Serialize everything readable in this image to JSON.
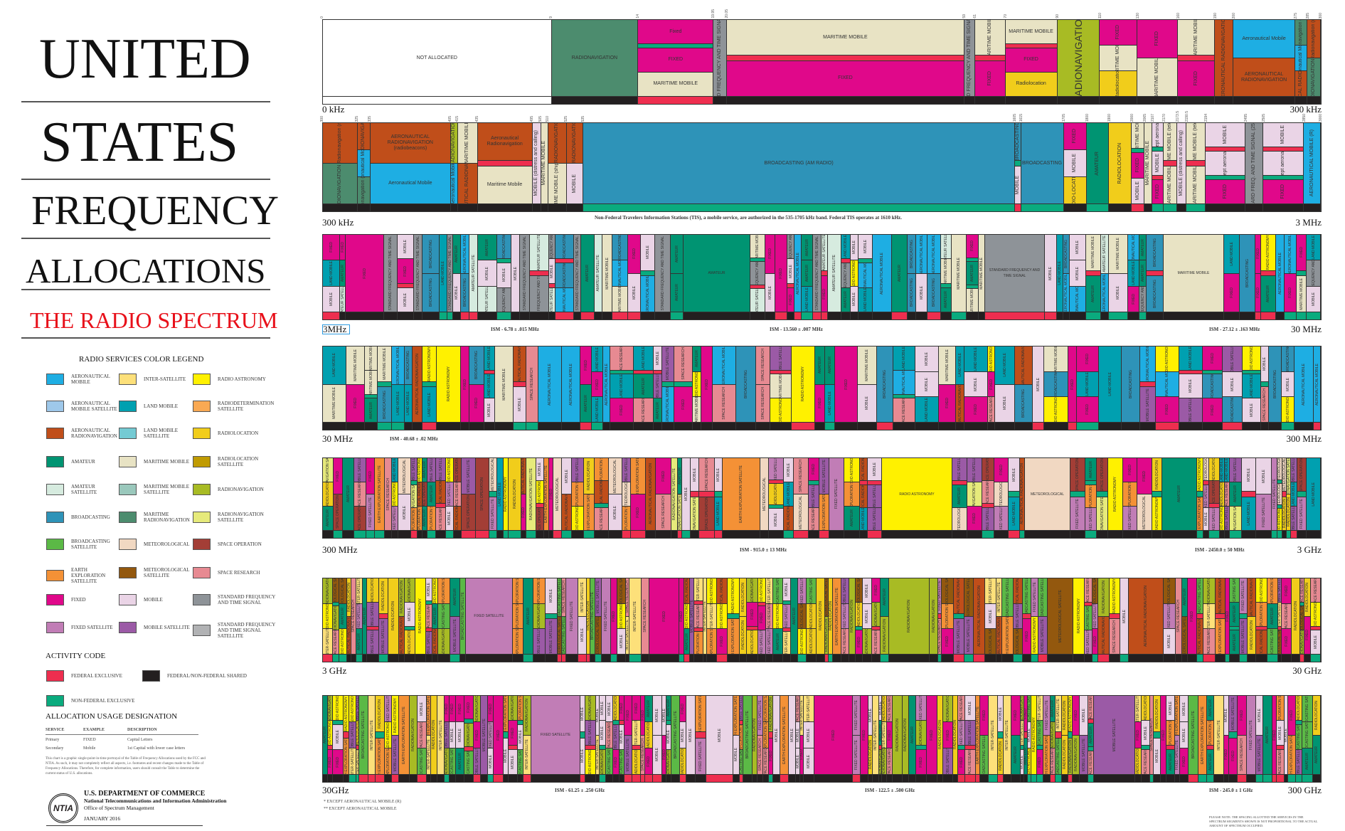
{
  "title": {
    "line1": "UNITED",
    "line2": "STATES",
    "line3": "FREQUENCY",
    "line4": "ALLOCATIONS",
    "subtitle": "THE RADIO SPECTRUM"
  },
  "legend": {
    "heading": "RADIO SERVICES COLOR LEGEND",
    "items": [
      {
        "key": "aero_mobile",
        "label": "Aeronautical Mobile",
        "color": "#1eaee3"
      },
      {
        "key": "aero_mobile_sat",
        "label": "Aeronautical Mobile Satellite",
        "color": "#9ec8ea"
      },
      {
        "key": "aero_radionav",
        "label": "Aeronautical Radionavigation",
        "color": "#c04e1a"
      },
      {
        "key": "amateur",
        "label": "Amateur",
        "color": "#009472"
      },
      {
        "key": "amateur_sat",
        "label": "Amateur Satellite",
        "color": "#d6ebdf"
      },
      {
        "key": "broadcasting",
        "label": "Broadcasting",
        "color": "#2e93b8"
      },
      {
        "key": "broadcasting_sat",
        "label": "Broadcasting Satellite",
        "color": "#5bb946"
      },
      {
        "key": "earth_expl_sat",
        "label": "Earth Exploration Satellite",
        "color": "#f49136"
      },
      {
        "key": "fixed",
        "label": "Fixed",
        "color": "#e0088a"
      },
      {
        "key": "fixed_sat",
        "label": "Fixed Satellite",
        "color": "#c17db6"
      },
      {
        "key": "inter_sat",
        "label": "Inter-Satellite",
        "color": "#fde07a"
      },
      {
        "key": "land_mobile",
        "label": "Land Mobile",
        "color": "#00a0b0"
      },
      {
        "key": "land_mobile_sat",
        "label": "Land Mobile Satellite",
        "color": "#74cad3"
      },
      {
        "key": "maritime_mobile",
        "label": "Maritime Mobile",
        "color": "#e8e3c4"
      },
      {
        "key": "maritime_mobile_sat",
        "label": "Maritime Mobile Satellite",
        "color": "#9ac8bc"
      },
      {
        "key": "maritime_radionav",
        "label": "Maritime Radionavigation",
        "color": "#4c8c6e"
      },
      {
        "key": "meteorological",
        "label": "Meteorological",
        "color": "#f1d8c2"
      },
      {
        "key": "meteorological_sat",
        "label": "Meteorological Satellite",
        "color": "#93580e"
      },
      {
        "key": "mobile",
        "label": "Mobile",
        "color": "#ead4e6"
      },
      {
        "key": "mobile_sat",
        "label": "Mobile Satellite",
        "color": "#9b5aa6"
      },
      {
        "key": "radio_astronomy",
        "label": "Radio Astronomy",
        "color": "#fff100"
      },
      {
        "key": "radiodet_sat",
        "label": "Radiodetermination Satellite",
        "color": "#f9a953"
      },
      {
        "key": "radiolocation",
        "label": "Radiolocation",
        "color": "#f1cd1b"
      },
      {
        "key": "radioloc_sat",
        "label": "Radiolocation Satellite",
        "color": "#c09b02"
      },
      {
        "key": "radionav",
        "label": "Radionavigation",
        "color": "#a8bb24"
      },
      {
        "key": "radionav_sat",
        "label": "Radionavigation Satellite",
        "color": "#e6ea7b"
      },
      {
        "key": "space_op",
        "label": "Space Operation",
        "color": "#a33e36"
      },
      {
        "key": "space_research",
        "label": "Space Research",
        "color": "#e78a92"
      },
      {
        "key": "std_freq",
        "label": "Standard Frequency and Time Signal",
        "color": "#8e9398"
      },
      {
        "key": "std_freq_sat",
        "label": "Standard Frequency and Time Signal Satellite",
        "color": "#b1b2b4"
      }
    ]
  },
  "activity": {
    "heading": "ACTIVITY CODE",
    "items": [
      {
        "key": "fed",
        "label": "FEDERAL EXCLUSIVE",
        "color": "#ee2e4f"
      },
      {
        "key": "shared",
        "label": "FEDERAL/NON-FEDERAL SHARED",
        "color": "#231f20"
      },
      {
        "key": "nonfed",
        "label": "NON-FEDERAL EXCLUSIVE",
        "color": "#0aab7e"
      }
    ]
  },
  "usage": {
    "heading": "ALLOCATION USAGE DESIGNATION",
    "columns": [
      "SERVICE",
      "EXAMPLE",
      "DESCRIPTION"
    ],
    "rows": [
      [
        "Primary",
        "FIXED",
        "Capital Letters"
      ],
      [
        "Secondary",
        "Mobile",
        "1st Capital with lower case letters"
      ]
    ]
  },
  "disclaimer": "This chart is a graphic single-point-in-time portrayal of the Table of Frequency Allocations used by the FCC and NTIA. As such, it may not completely reflect all aspects, i.e. footnotes and recent changes made to the Table of Frequency Allocations. Therefore, for complete information, users should consult the Table to determine the current status of U.S. allocations.",
  "agency": {
    "logo_text": "NTIA",
    "dept": "U.S. DEPARTMENT OF COMMERCE",
    "admin": "National Telecommunications and Information Administration",
    "office": "Office of Spectrum Management",
    "date": "JANUARY 2016"
  },
  "bands": [
    {
      "start": "0 kHz",
      "end": "300 kHz"
    },
    {
      "start": "300 kHz",
      "end": "3 MHz",
      "note": "Non-Federal Travelers Information Stations (TIS), a mobile service, are authorized in the 535-1705 kHz band.  Federal TIS operates at 1610 kHz."
    },
    {
      "start": "3MHz",
      "end": "30 MHz",
      "ism": [
        "ISM - 6.78 ± .015 MHz",
        "ISM - 13.560 ± .007 MHz",
        "ISM - 27.12 ± .163 MHz"
      ]
    },
    {
      "start": "30 MHz",
      "end": "300 MHz",
      "ism": [
        "ISM - 40.68 ± .02 MHz"
      ]
    },
    {
      "start": "300 MHz",
      "end": "3 GHz",
      "ism": [
        "ISM - 915.0 ± 13 MHz",
        "ISM - 2450.0 ± 50 MHz"
      ]
    },
    {
      "start": "3 GHz",
      "end": "30 GHz"
    },
    {
      "start": "30GHz",
      "end": "300 GHz",
      "ism": [
        "ISM - 61.25 ± .250 GHz",
        "ISM - 122.5 ± .500 GHz",
        "ISM - 245.0 ± 1 GHz"
      ]
    }
  ],
  "footnotes": [
    "* EXCEPT AERONAUTICAL MOBILE (R)",
    "** EXCEPT AERONAUTICAL MOBILE"
  ],
  "please_note": "PLEASE NOTE: THE SPACING ALLOTTED THE SERVICES IN THE SPECTRUM SEGMENTS SHOWN IS NOT PROPORTIONAL TO THE ACTUAL AMOUNT OF SPECTRUM OCCUPIED.",
  "row1": [
    {
      "from": "0",
      "to": "9",
      "act": "none",
      "layers": [
        {
          "s": "none",
          "t": "NOT ALLOCATED"
        }
      ]
    },
    {
      "from": "9",
      "to": "14",
      "act": "shared",
      "layers": [
        {
          "s": "maritime_radionav",
          "t": "RADIONAVIGATION"
        }
      ]
    },
    {
      "from": "14",
      "to": "19.95",
      "act": "fed",
      "layers": [
        {
          "s": "fixed",
          "t": "Fixed"
        },
        {
          "s": "nonfed"
        },
        {
          "s": "fixed",
          "t": "FIXED"
        },
        {
          "s": "maritime_mobile",
          "t": "MARITIME MOBILE"
        }
      ]
    },
    {
      "from": "19.95",
      "to": "20.05",
      "act": "shared",
      "layers": [
        {
          "s": "std_freq",
          "t": "STANDARD FREQUENCY AND TIME SIGNAL (20 kHz)"
        }
      ]
    },
    {
      "from": "20.05",
      "to": "59",
      "act": "shared",
      "layers": [
        {
          "s": "maritime_mobile",
          "t": "MARITIME MOBILE"
        },
        {
          "s": "fed"
        },
        {
          "s": "fixed",
          "t": "FIXED"
        }
      ]
    },
    {
      "from": "59",
      "to": "61",
      "act": "shared",
      "layers": [
        {
          "s": "std_freq",
          "t": "STANDARD FREQUENCY AND TIME SIGNAL (60 kHz)"
        }
      ]
    },
    {
      "from": "61",
      "to": "70",
      "act": "shared",
      "layers": [
        {
          "s": "maritime_mobile",
          "t": "MARITIME MOBILE"
        },
        {
          "s": "fed"
        },
        {
          "s": "fixed",
          "t": "FIXED"
        }
      ]
    },
    {
      "from": "70",
      "to": "90",
      "act": "shared",
      "layers": [
        {
          "s": "maritime_mobile",
          "t": "MARITIME MOBILE"
        },
        {
          "s": "fed"
        },
        {
          "s": "fixed",
          "t": "FIXED"
        },
        {
          "s": "radiolocation",
          "t": "Radiolocation"
        }
      ]
    },
    {
      "from": "90",
      "to": "110",
      "act": "shared",
      "layers": [
        {
          "s": "radionav",
          "t": "RADIONAVIGATION"
        }
      ]
    },
    {
      "from": "110",
      "to": "130",
      "act": "shared",
      "layers": [
        {
          "s": "fixed",
          "t": "FIXED"
        },
        {
          "s": "maritime_mobile",
          "t": "MARITIME MOBILE"
        },
        {
          "s": "radiolocation",
          "t": "Radiolocation"
        }
      ]
    },
    {
      "from": "130",
      "to": "160",
      "act": "shared",
      "layers": [
        {
          "s": "fixed",
          "t": "FIXED"
        },
        {
          "s": "maritime_mobile",
          "t": "MARITIME MOBILE"
        }
      ]
    },
    {
      "from": "160",
      "to": "190",
      "act": "shared",
      "layers": [
        {
          "s": "maritime_mobile",
          "t": "MARITIME MOBILE"
        },
        {
          "s": "fed"
        },
        {
          "s": "fixed",
          "t": "FIXED"
        }
      ]
    },
    {
      "from": "190",
      "to": "200",
      "act": "shared",
      "layers": [
        {
          "s": "aero_radionav",
          "t": "AERONAUTICAL RADIONAVIGATION"
        }
      ]
    },
    {
      "from": "200",
      "to": "275",
      "act": "shared",
      "layers": [
        {
          "s": "aero_mobile",
          "t": "Aeronautical Mobile"
        },
        {
          "s": "aero_radionav",
          "t": "AERONAUTICAL RADIONAVIGATION"
        }
      ]
    },
    {
      "from": "275",
      "to": "285",
      "act": "shared",
      "layers": [
        {
          "s": "maritime_radionav",
          "t": "Maritime Radionavigation (radiobeacons)"
        },
        {
          "s": "aero_mobile",
          "t": "Aeronautical Mobile"
        },
        {
          "s": "aero_radionav",
          "t": "AERONAUTICAL RADIONAVIGATION"
        }
      ]
    },
    {
      "from": "285",
      "to": "300",
      "act": "shared",
      "layers": [
        {
          "s": "aero_radionav",
          "t": "Aeronautical Radionavigation (radiobeacons)"
        },
        {
          "s": "maritime_radionav",
          "t": "MARITIME RADIONAVIGATION (radiobeacons)"
        }
      ]
    }
  ],
  "row2": [
    {
      "from": "300",
      "to": "325",
      "act": "shared",
      "layers": [
        {
          "s": "aero_radionav",
          "t": "Aeronautical Radionavigation (radiobeacons)"
        },
        {
          "s": "maritime_radionav",
          "t": "MARITIME RADIONAVIGATION (radiobeacons)"
        }
      ]
    },
    {
      "from": "325",
      "to": "335",
      "act": "shared",
      "layers": [
        {
          "s": "aero_radionav",
          "t": "AERONAUTICAL RADIONAVIGATION (radiobeacons)"
        },
        {
          "s": "aero_mobile",
          "t": "Aeronautical Mobile"
        },
        {
          "s": "maritime_radionav",
          "t": "Maritime Radionavigation (radiobeacons)"
        }
      ]
    },
    {
      "from": "335",
      "to": "405",
      "act": "shared",
      "layers": [
        {
          "s": "aero_radionav",
          "t": "AERONAUTICAL RADIONAVIGATION (radiobeacons)"
        },
        {
          "s": "aero_mobile",
          "t": "Aeronautical Mobile"
        }
      ]
    },
    {
      "from": "405",
      "to": "415",
      "act": "shared",
      "layers": [
        {
          "s": "radionav",
          "t": "RADIONAVIGATION"
        },
        {
          "s": "aero_mobile",
          "t": "Aeronautical Mobile"
        }
      ]
    },
    {
      "from": "415",
      "to": "435",
      "act": "shared",
      "layers": [
        {
          "s": "maritime_mobile",
          "t": "MARITIME MOBILE"
        },
        {
          "s": "aero_radionav",
          "t": "AERONAUTICAL RADIONAVIGATION"
        }
      ]
    },
    {
      "from": "435",
      "to": "495",
      "act": "shared",
      "layers": [
        {
          "s": "aero_radionav",
          "t": "Aeronautical Radionavigation"
        },
        {
          "s": "fed"
        },
        {
          "s": "maritime_mobile",
          "t": "Maritime Mobile"
        }
      ]
    },
    {
      "from": "495",
      "to": "505",
      "act": "shared",
      "layers": [
        {
          "s": "mobile",
          "t": "MOBILE (distress and calling)"
        }
      ]
    },
    {
      "from": "505",
      "to": "510",
      "act": "shared",
      "layers": [
        {
          "s": "maritime_mobile",
          "t": "MARITIME MOBILE"
        }
      ]
    },
    {
      "from": "510",
      "to": "525",
      "act": "shared",
      "layers": [
        {
          "s": "aero_radionav",
          "t": "AERONAUTICAL RADIONAVIGATION (radiobeacons)"
        },
        {
          "s": "maritime_mobile",
          "t": "MARITIME MOBILE (ships only)"
        }
      ]
    },
    {
      "from": "525",
      "to": "535",
      "act": "shared",
      "layers": [
        {
          "s": "aero_radionav",
          "t": "AERONAUTICAL RADIONAVIGATION (radiobeacons)"
        },
        {
          "s": "mobile",
          "t": "MOBILE"
        }
      ]
    },
    {
      "from": "535",
      "to": "1605",
      "act": "nonfed",
      "layers": [
        {
          "s": "broadcasting",
          "t": "BROADCASTING (AM RADIO)"
        }
      ]
    },
    {
      "from": "1605",
      "to": "1615",
      "act": "fed",
      "layers": [
        {
          "s": "broadcasting",
          "t": "BROADCASTING"
        },
        {
          "s": "nonfed"
        },
        {
          "s": "mobile",
          "t": "MOBILE"
        }
      ]
    },
    {
      "from": "1615",
      "to": "1705",
      "act": "nonfed",
      "layers": [
        {
          "s": "broadcasting",
          "t": "BROADCASTING"
        }
      ]
    },
    {
      "from": "1705",
      "to": "1800",
      "act": "shared",
      "layers": [
        {
          "s": "fixed",
          "t": "FIXED"
        },
        {
          "s": "mobile",
          "t": "MOBILE"
        },
        {
          "s": "radiolocation",
          "t": "RADIO-LOCATION"
        }
      ]
    },
    {
      "from": "1800",
      "to": "1900",
      "act": "nonfed",
      "layers": [
        {
          "s": "amateur",
          "t": "AMATEUR"
        }
      ]
    },
    {
      "from": "1900",
      "to": "2000",
      "act": "shared",
      "layers": [
        {
          "s": "radiolocation",
          "t": "RADIOLOCATION"
        }
      ]
    },
    {
      "from": "2000",
      "to": "2065",
      "act": "fed",
      "layers": [
        {
          "s": "maritime_mobile",
          "t": "MARITIME MOBILE"
        },
        {
          "s": "nonfed"
        },
        {
          "s": "fixed",
          "t": "FIXED"
        },
        {
          "s": "mobile",
          "t": "MOBILE"
        }
      ]
    },
    {
      "from": "2065",
      "to": "2107",
      "act": "shared",
      "layers": [
        {
          "s": "maritime_mobile",
          "t": "MARITIME MOBILE"
        }
      ]
    },
    {
      "from": "2107",
      "to": "2170",
      "act": "nonfed",
      "layers": [
        {
          "s": "mobile",
          "t": "MOBILE except aeronautical mobile"
        },
        {
          "s": "nonfed"
        },
        {
          "s": "mobile",
          "t": "MOBILE"
        },
        {
          "s": "fed"
        },
        {
          "s": "fixed",
          "t": "FIXED"
        }
      ]
    },
    {
      "from": "2170",
      "to": "2173.5",
      "act": "nonfed",
      "layers": [
        {
          "s": "maritime_mobile",
          "t": "MARITIME MOBILE (telephony)"
        },
        {
          "s": "fed"
        },
        {
          "s": "maritime_mobile",
          "t": "MARITIME MOBILE"
        }
      ]
    },
    {
      "from": "2173.5",
      "to": "2190.5",
      "act": "shared",
      "layers": [
        {
          "s": "mobile",
          "t": "MOBILE (distress and calling)"
        }
      ]
    },
    {
      "from": "2190.5",
      "to": "2194",
      "act": "nonfed",
      "layers": [
        {
          "s": "maritime_mobile",
          "t": "MARITIME MOBILE (telephony)"
        },
        {
          "s": "fed"
        },
        {
          "s": "maritime_mobile",
          "t": "MARITIME MOBILE"
        }
      ]
    },
    {
      "from": "2194",
      "to": "2495",
      "act": "shared",
      "layers": [
        {
          "s": "mobile",
          "t": "MOBILE"
        },
        {
          "s": "fed"
        },
        {
          "s": "mobile",
          "t": "MOBILE except aeronautical mobile"
        },
        {
          "s": "nonfed"
        },
        {
          "s": "fixed",
          "t": "FIXED"
        }
      ]
    },
    {
      "from": "2495",
      "to": "2505",
      "act": "shared",
      "layers": [
        {
          "s": "std_freq",
          "t": "STANDARD FREQ. AND TIME SIGNAL (2500kHz)"
        }
      ]
    },
    {
      "from": "2505",
      "to": "2850",
      "act": "shared",
      "layers": [
        {
          "s": "mobile",
          "t": "MOBILE"
        },
        {
          "s": "fed"
        },
        {
          "s": "mobile",
          "t": "MOBILE except aeronautical mobile"
        },
        {
          "s": "nonfed"
        },
        {
          "s": "fixed",
          "t": "FIXED"
        }
      ]
    },
    {
      "from": "2850",
      "to": "3000",
      "act": "shared",
      "layers": [
        {
          "s": "aero_mobile",
          "t": "AERONAUTICAL MOBILE (R)"
        }
      ]
    }
  ]
}
